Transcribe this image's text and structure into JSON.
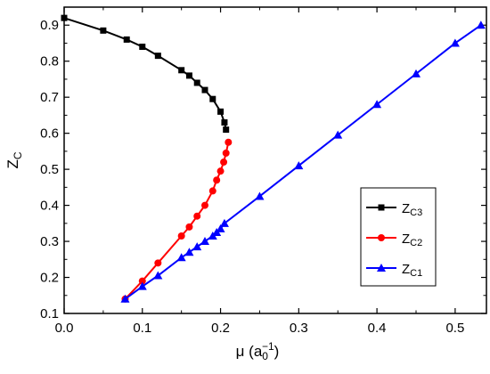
{
  "chart_data": {
    "type": "line",
    "title": "",
    "xlabel": "μ (a0^-1)",
    "ylabel": "Zc",
    "xlim": [
      0.0,
      0.54
    ],
    "ylim": [
      0.1,
      0.95
    ],
    "xticks": [
      "0.0",
      "0.1",
      "0.2",
      "0.3",
      "0.4",
      "0.5"
    ],
    "yticks": [
      "0.1",
      "0.2",
      "0.3",
      "0.4",
      "0.5",
      "0.6",
      "0.7",
      "0.8",
      "0.9"
    ],
    "grid": false,
    "legend_position": "right",
    "series": [
      {
        "name": "ZC3",
        "color": "#000000",
        "marker": "square",
        "x": [
          0.0,
          0.05,
          0.08,
          0.1,
          0.12,
          0.15,
          0.16,
          0.17,
          0.18,
          0.19,
          0.2,
          0.205,
          0.207
        ],
        "y": [
          0.92,
          0.885,
          0.86,
          0.84,
          0.815,
          0.775,
          0.76,
          0.74,
          0.72,
          0.695,
          0.66,
          0.63,
          0.61
        ]
      },
      {
        "name": "ZC2",
        "color": "#ff0000",
        "marker": "circle",
        "x": [
          0.21,
          0.207,
          0.204,
          0.2,
          0.195,
          0.19,
          0.18,
          0.17,
          0.16,
          0.15,
          0.12,
          0.1,
          0.078
        ],
        "y": [
          0.575,
          0.545,
          0.52,
          0.495,
          0.47,
          0.44,
          0.4,
          0.37,
          0.34,
          0.315,
          0.24,
          0.19,
          0.14
        ]
      },
      {
        "name": "ZC1",
        "color": "#0000ff",
        "marker": "triangle",
        "x": [
          0.078,
          0.1,
          0.12,
          0.15,
          0.16,
          0.17,
          0.18,
          0.19,
          0.195,
          0.2,
          0.205,
          0.25,
          0.3,
          0.35,
          0.4,
          0.45,
          0.5,
          0.533
        ],
        "y": [
          0.14,
          0.175,
          0.205,
          0.255,
          0.27,
          0.285,
          0.3,
          0.315,
          0.325,
          0.335,
          0.35,
          0.425,
          0.51,
          0.595,
          0.68,
          0.765,
          0.85,
          0.9
        ]
      }
    ]
  }
}
